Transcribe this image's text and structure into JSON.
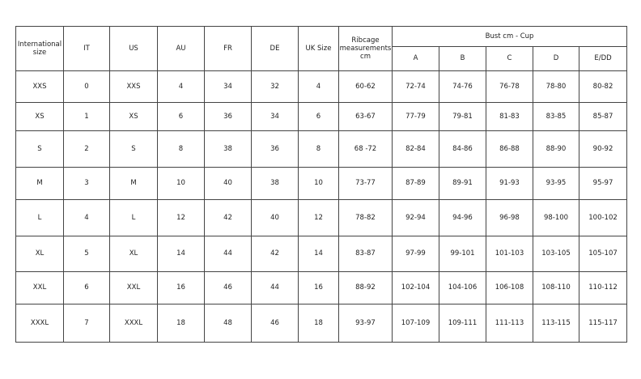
{
  "headers": {
    "international": "International size",
    "it": "IT",
    "us": "US",
    "au": "AU",
    "fr": "FR",
    "de": "DE",
    "uk": "UK Size",
    "ribcage": "Ribcage measurements cm",
    "bust": "Bust cm - Cup",
    "cups": [
      "A",
      "B",
      "C",
      "D",
      "E/DD"
    ]
  },
  "rows": [
    [
      "XXS",
      "0",
      "XXS",
      "4",
      "34",
      "32",
      "4",
      "60-62",
      "72-74",
      "74-76",
      "76-78",
      "78-80",
      "80-82"
    ],
    [
      "XS",
      "1",
      "XS",
      "6",
      "36",
      "34",
      "6",
      "63-67",
      "77-79",
      "79-81",
      "81-83",
      "83-85",
      "85-87"
    ],
    [
      "S",
      "2",
      "S",
      "8",
      "38",
      "36",
      "8",
      "68 -72",
      "82-84",
      "84-86",
      "86-88",
      "88-90",
      "90-92"
    ],
    [
      "M",
      "3",
      "M",
      "10",
      "40",
      "38",
      "10",
      "73-77",
      "87-89",
      "89-91",
      "91-93",
      "93-95",
      "95-97"
    ],
    [
      "L",
      "4",
      "L",
      "12",
      "42",
      "40",
      "12",
      "78-82",
      "92-94",
      "94-96",
      "96-98",
      "98-100",
      "100-102"
    ],
    [
      "XL",
      "5",
      "XL",
      "14",
      "44",
      "42",
      "14",
      "83-87",
      "97-99",
      "99-101",
      "101-103",
      "103-105",
      "105-107"
    ],
    [
      "XXL",
      "6",
      "XXL",
      "16",
      "46",
      "44",
      "16",
      "88-92",
      "102-104",
      "104-106",
      "106-108",
      "108-110",
      "110-112"
    ],
    [
      "XXXL",
      "7",
      "XXXL",
      "18",
      "48",
      "46",
      "18",
      "93-97",
      "107-109",
      "109-111",
      "111-113",
      "113-115",
      "115-117"
    ]
  ]
}
